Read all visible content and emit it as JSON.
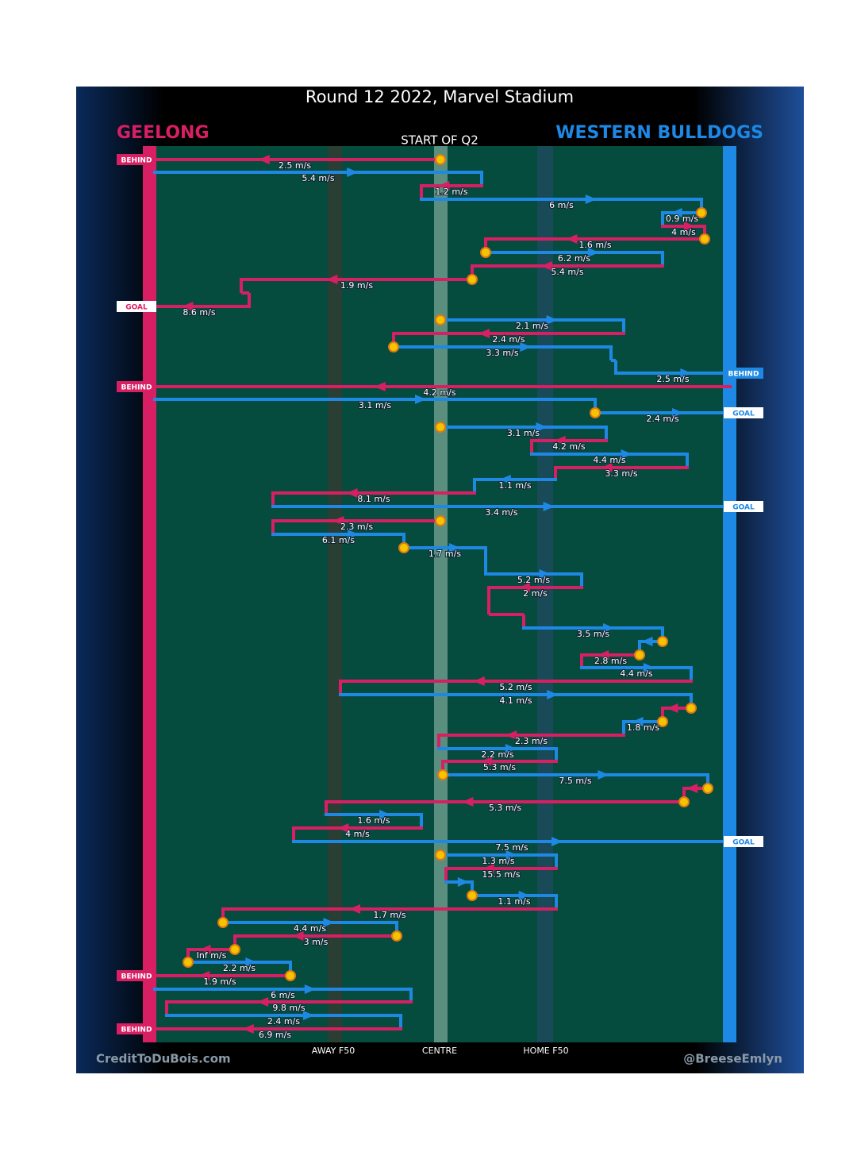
{
  "title": "Round 12 2022, Marvel Stadium",
  "subtitle": "START OF Q2",
  "teams": [
    {
      "name": "GEELONG",
      "color": "#d81f63"
    },
    {
      "name": "WESTERN BULLDOGS",
      "color": "#1e88e5"
    }
  ],
  "field_labels": [
    "AWAY F50",
    "CENTRE",
    "HOME F50"
  ],
  "credits": [
    "CreditToDuBois.com",
    "@BreeseEmlyn"
  ],
  "events": [
    {
      "team": "GEELONG",
      "speed": "2.5 m/s",
      "result": "BEHIND"
    },
    {
      "team": "WESTERN BULLDOGS",
      "speed": "5.4 m/s"
    },
    {
      "team": "GEELONG",
      "speed": "1.2 m/s"
    },
    {
      "team": "WESTERN BULLDOGS",
      "speed": "6 m/s"
    },
    {
      "team": "WESTERN BULLDOGS",
      "speed": "0.9 m/s"
    },
    {
      "team": "GEELONG",
      "speed": "4 m/s"
    },
    {
      "team": "GEELONG",
      "speed": "1.6 m/s"
    },
    {
      "team": "WESTERN BULLDOGS",
      "speed": "6.2 m/s"
    },
    {
      "team": "GEELONG",
      "speed": "5.4 m/s"
    },
    {
      "team": "GEELONG",
      "speed": "1.9 m/s"
    },
    {
      "team": "GEELONG",
      "speed": "8.6 m/s",
      "result": "GOAL"
    },
    {
      "team": "WESTERN BULLDOGS",
      "speed": "2.1 m/s"
    },
    {
      "team": "GEELONG",
      "speed": "2.4 m/s"
    },
    {
      "team": "WESTERN BULLDOGS",
      "speed": "3.3 m/s"
    },
    {
      "team": "WESTERN BULLDOGS",
      "speed": "2.5 m/s",
      "result": "BEHIND"
    },
    {
      "team": "GEELONG",
      "speed": "4.2 m/s",
      "result": "BEHIND"
    },
    {
      "team": "WESTERN BULLDOGS",
      "speed": "3.1 m/s"
    },
    {
      "team": "WESTERN BULLDOGS",
      "speed": "2.4 m/s",
      "result": "GOAL"
    },
    {
      "team": "WESTERN BULLDOGS",
      "speed": "3.1 m/s"
    },
    {
      "team": "GEELONG",
      "speed": "4.2 m/s"
    },
    {
      "team": "WESTERN BULLDOGS",
      "speed": "4.4 m/s"
    },
    {
      "team": "GEELONG",
      "speed": "3.3 m/s"
    },
    {
      "team": "WESTERN BULLDOGS",
      "speed": "1.1 m/s"
    },
    {
      "team": "GEELONG",
      "speed": "8.1 m/s"
    },
    {
      "team": "WESTERN BULLDOGS",
      "speed": "3.4 m/s",
      "result": "GOAL"
    },
    {
      "team": "GEELONG",
      "speed": "2.3 m/s"
    },
    {
      "team": "WESTERN BULLDOGS",
      "speed": "6.1 m/s"
    },
    {
      "team": "WESTERN BULLDOGS",
      "speed": "1.7 m/s"
    },
    {
      "team": "WESTERN BULLDOGS",
      "speed": "5.2 m/s"
    },
    {
      "team": "GEELONG",
      "speed": "2 m/s"
    },
    {
      "team": "WESTERN BULLDOGS",
      "speed": "3.5 m/s"
    },
    {
      "team": "WESTERN BULLDOGS"
    },
    {
      "team": "GEELONG",
      "speed": "2.8 m/s"
    },
    {
      "team": "WESTERN BULLDOGS",
      "speed": "4.4 m/s"
    },
    {
      "team": "GEELONG",
      "speed": "5.2 m/s"
    },
    {
      "team": "WESTERN BULLDOGS",
      "speed": "4.1 m/s"
    },
    {
      "team": "GEELONG"
    },
    {
      "team": "WESTERN BULLDOGS",
      "speed": "1.8 m/s"
    },
    {
      "team": "GEELONG",
      "speed": "2.3 m/s"
    },
    {
      "team": "WESTERN BULLDOGS",
      "speed": "2.2 m/s"
    },
    {
      "team": "GEELONG",
      "speed": "5.3 m/s"
    },
    {
      "team": "WESTERN BULLDOGS",
      "speed": "7.5 m/s"
    },
    {
      "team": "GEELONG"
    },
    {
      "team": "GEELONG",
      "speed": "5.3 m/s"
    },
    {
      "team": "WESTERN BULLDOGS",
      "speed": "1.6 m/s"
    },
    {
      "team": "GEELONG",
      "speed": "4 m/s"
    },
    {
      "team": "WESTERN BULLDOGS",
      "speed": "7.5 m/s",
      "result": "GOAL"
    },
    {
      "team": "WESTERN BULLDOGS",
      "speed": "1.3 m/s"
    },
    {
      "team": "GEELONG",
      "speed": "15.5 m/s"
    },
    {
      "team": "WESTERN BULLDOGS"
    },
    {
      "team": "WESTERN BULLDOGS",
      "speed": "1.1 m/s"
    },
    {
      "team": "GEELONG",
      "speed": "1.7 m/s"
    },
    {
      "team": "WESTERN BULLDOGS",
      "speed": "4.4 m/s"
    },
    {
      "team": "GEELONG",
      "speed": "3 m/s"
    },
    {
      "team": "GEELONG",
      "speed": "Inf m/s"
    },
    {
      "team": "WESTERN BULLDOGS",
      "speed": "2.2 m/s"
    },
    {
      "team": "GEELONG",
      "speed": "1.9 m/s",
      "result": "BEHIND"
    },
    {
      "team": "WESTERN BULLDOGS",
      "speed": "6 m/s"
    },
    {
      "team": "GEELONG",
      "speed": "9.8 m/s"
    },
    {
      "team": "WESTERN BULLDOGS",
      "speed": "2.4 m/s"
    },
    {
      "team": "GEELONG",
      "speed": "6.9 m/s",
      "result": "BEHIND"
    }
  ]
}
